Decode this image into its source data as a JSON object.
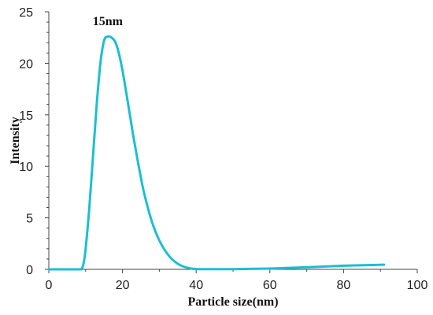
{
  "chart_data": {
    "type": "line",
    "title": "",
    "xlabel": "Particle size(nm)",
    "ylabel": "Intensity",
    "xlim": [
      0,
      100
    ],
    "ylim": [
      0,
      25
    ],
    "x_ticks": [
      0,
      20,
      40,
      60,
      80,
      100
    ],
    "x_tick_labels": [
      "0",
      "20",
      "40",
      "60",
      "80",
      "100"
    ],
    "y_ticks": [
      0,
      5,
      10,
      15,
      20,
      25
    ],
    "y_tick_labels": [
      "0",
      "5",
      "10",
      "15",
      "20",
      "25"
    ],
    "grid": false,
    "series": [
      {
        "color": "#1bbfd2",
        "x": [
          0,
          8,
          9,
          9.5,
          10,
          11,
          12,
          13,
          14,
          15,
          16,
          17,
          18,
          19,
          20,
          21,
          22,
          23,
          24,
          25,
          26,
          28,
          30,
          32,
          34,
          36,
          38,
          40,
          45,
          50,
          60,
          70,
          80,
          91
        ],
        "y": [
          0,
          0,
          0.1,
          0.7,
          2,
          6,
          11,
          16,
          20,
          22.2,
          22.6,
          22.5,
          22.1,
          21.0,
          19.3,
          17.2,
          15.0,
          12.8,
          10.8,
          8.9,
          7.2,
          4.6,
          2.8,
          1.6,
          0.8,
          0.35,
          0.12,
          0.03,
          0.02,
          0.02,
          0.08,
          0.2,
          0.35,
          0.45
        ]
      }
    ],
    "annotations": [
      {
        "text": "15nm",
        "x": 16,
        "y": 23.7
      }
    ]
  }
}
